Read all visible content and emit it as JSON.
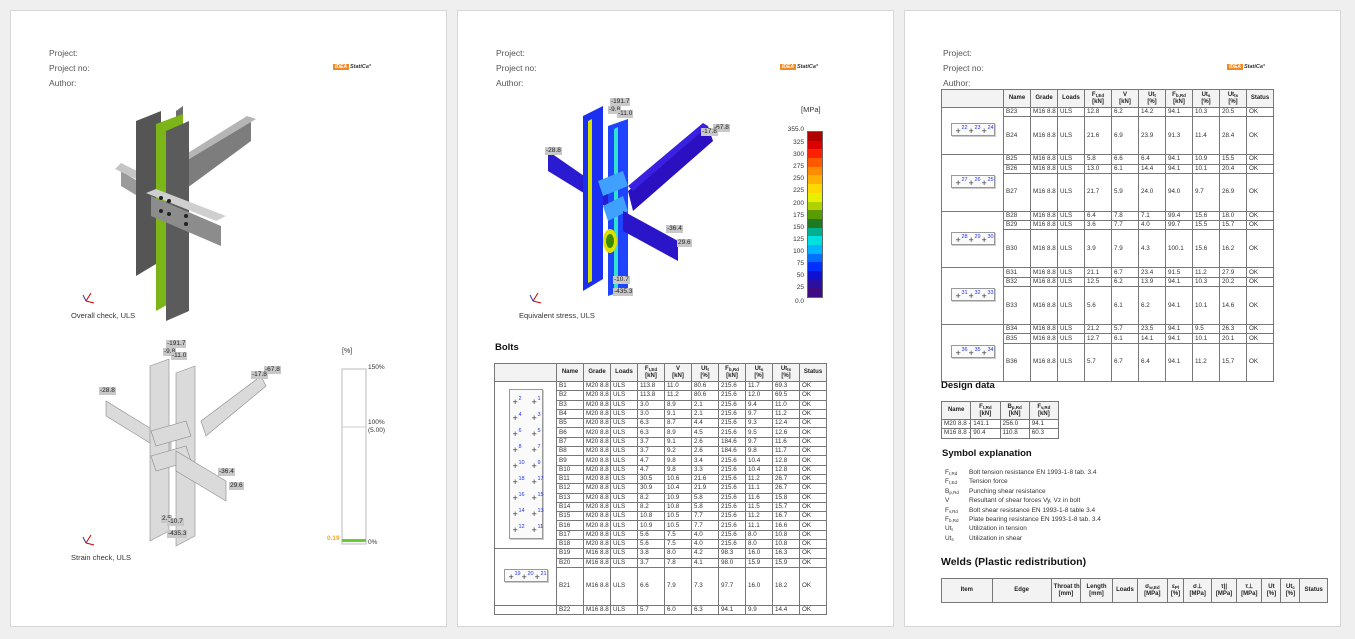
{
  "header": {
    "project": "Project:",
    "project_no": "Project no:",
    "author": "Author:",
    "logo": "IDEA StatiCa"
  },
  "page1": {
    "overall_caption": "Overall check, ULS",
    "strain_caption": "Strain check, ULS",
    "strain_labels": [
      "-191.7",
      "-9.8",
      "-11.0",
      "-67.8",
      "-17.8",
      "-28.8",
      "-36.4",
      "29.6",
      "2.5",
      "-10.7",
      "-435.3"
    ],
    "strain_legend": {
      "unit": "[%]",
      "top": "150%",
      "mid": "100%",
      "mid_sub": "(5.00)",
      "bottom": "0%",
      "value": "0.19",
      "value_color": "#f5a623",
      "fill_color": "#66cc33"
    }
  },
  "page2": {
    "stress_caption": "Equivalent stress, ULS",
    "stress_labels": [
      "-191.7",
      "-9.8",
      "-11.0",
      "-67.8",
      "-17.8",
      "-28.8",
      "-36.4",
      "29.6",
      "-10.7",
      "-435.3"
    ],
    "stress_legend": {
      "unit": "[MPa]",
      "ticks": [
        "355.0",
        "325",
        "300",
        "275",
        "250",
        "225",
        "200",
        "175",
        "150",
        "125",
        "100",
        "75",
        "50",
        "25",
        "0.0"
      ],
      "colors": [
        "#b00000",
        "#dd0000",
        "#ff2000",
        "#ff5a00",
        "#ff8c00",
        "#ffb000",
        "#ffd800",
        "#e8f000",
        "#b0d000",
        "#5a9c00",
        "#1f7a1f",
        "#00b090",
        "#00e0e0",
        "#00b4ff",
        "#0070ff",
        "#0030ff",
        "#1010d0",
        "#2a10a0",
        "#400a80"
      ]
    },
    "bolts_title": "Bolts"
  },
  "bolt_headers": [
    {
      "m": "Name"
    },
    {
      "m": "Grade"
    },
    {
      "m": "Loads"
    },
    {
      "m": "F",
      "s": "t,Ed",
      "u": "[kN]"
    },
    {
      "m": "V",
      "u": "[kN]"
    },
    {
      "m": "Ut",
      "s": "t",
      "u": "[%]"
    },
    {
      "m": "F",
      "s": "b,Rd",
      "u": "[kN]"
    },
    {
      "m": "Ut",
      "s": "s",
      "u": "[%]"
    },
    {
      "m": "Ut",
      "s": "ts",
      "u": "[%]"
    },
    {
      "m": "Status"
    }
  ],
  "bolt_groups_p2": [
    {
      "pic": "column",
      "left": [
        "2",
        "4",
        "6",
        "8",
        "10",
        "18",
        "16",
        "14",
        "12"
      ],
      "right": [
        "1",
        "3",
        "5",
        "7",
        "9",
        "17",
        "15",
        "13",
        "11"
      ],
      "rows": [
        [
          "B1",
          "M20 8.8 - 1",
          "ULS",
          "113.8",
          "11.0",
          "80.6",
          "215.6",
          "11.7",
          "69.3",
          "OK"
        ],
        [
          "B2",
          "M20 8.8 - 1",
          "ULS",
          "113.8",
          "11.2",
          "80.6",
          "215.6",
          "12.0",
          "69.5",
          "OK"
        ],
        [
          "B3",
          "M20 8.8 - 1",
          "ULS",
          "3.0",
          "8.9",
          "2.1",
          "215.6",
          "9.4",
          "11.0",
          "OK"
        ],
        [
          "B4",
          "M20 8.8 - 1",
          "ULS",
          "3.0",
          "9.1",
          "2.1",
          "215.6",
          "9.7",
          "11.2",
          "OK"
        ],
        [
          "B5",
          "M20 8.8 - 1",
          "ULS",
          "6.3",
          "8.7",
          "4.4",
          "215.6",
          "9.3",
          "12.4",
          "OK"
        ],
        [
          "B6",
          "M20 8.8 - 1",
          "ULS",
          "6.3",
          "8.9",
          "4.5",
          "215.6",
          "9.5",
          "12.6",
          "OK"
        ],
        [
          "B7",
          "M20 8.8 - 1",
          "ULS",
          "3.7",
          "9.1",
          "2.6",
          "184.6",
          "9.7",
          "11.6",
          "OK"
        ],
        [
          "B8",
          "M20 8.8 - 1",
          "ULS",
          "3.7",
          "9.2",
          "2.6",
          "184.6",
          "9.8",
          "11.7",
          "OK"
        ],
        [
          "B9",
          "M20 8.8 - 1",
          "ULS",
          "4.7",
          "9.8",
          "3.4",
          "215.6",
          "10.4",
          "12.8",
          "OK"
        ],
        [
          "B10",
          "M20 8.8 - 1",
          "ULS",
          "4.7",
          "9.8",
          "3.3",
          "215.6",
          "10.4",
          "12.8",
          "OK"
        ],
        [
          "B11",
          "M20 8.8 - 1",
          "ULS",
          "30.5",
          "10.6",
          "21.6",
          "215.6",
          "11.2",
          "26.7",
          "OK"
        ],
        [
          "B12",
          "M20 8.8 - 1",
          "ULS",
          "30.9",
          "10.4",
          "21.9",
          "215.6",
          "11.1",
          "26.7",
          "OK"
        ],
        [
          "B13",
          "M20 8.8 - 1",
          "ULS",
          "8.2",
          "10.9",
          "5.8",
          "215.6",
          "11.6",
          "15.8",
          "OK"
        ],
        [
          "B14",
          "M20 8.8 - 1",
          "ULS",
          "8.2",
          "10.8",
          "5.8",
          "215.6",
          "11.5",
          "15.7",
          "OK"
        ],
        [
          "B15",
          "M20 8.8 - 1",
          "ULS",
          "10.8",
          "10.5",
          "7.7",
          "215.6",
          "11.2",
          "16.7",
          "OK"
        ],
        [
          "B16",
          "M20 8.8 - 1",
          "ULS",
          "10.9",
          "10.5",
          "7.7",
          "215.6",
          "11.1",
          "16.6",
          "OK"
        ],
        [
          "B17",
          "M20 8.8 - 1",
          "ULS",
          "5.6",
          "7.5",
          "4.0",
          "215.6",
          "8.0",
          "10.8",
          "OK"
        ],
        [
          "B18",
          "M20 8.8 - 1",
          "ULS",
          "5.6",
          "7.5",
          "4.0",
          "215.6",
          "8.0",
          "10.8",
          "OK"
        ]
      ]
    },
    {
      "pic": "row",
      "bolts": [
        "19",
        "20",
        "21"
      ],
      "rows": [
        [
          "B19",
          "M16 8.8 - 2",
          "ULS",
          "3.8",
          "8.0",
          "4.2",
          "98.3",
          "16.0",
          "16.3",
          "OK"
        ],
        [
          "B20",
          "M16 8.8 - 2",
          "ULS",
          "3.7",
          "7.8",
          "4.1",
          "98.0",
          "15.9",
          "15.9",
          "OK"
        ],
        [
          "B21",
          "M16 8.8 - 2",
          "ULS",
          "6.6",
          "7.9",
          "7.3",
          "97.7",
          "16.0",
          "18.2",
          "OK"
        ]
      ]
    },
    {
      "pic": "none",
      "rows": [
        [
          "B22",
          "M16 8.8 - 2",
          "ULS",
          "5.7",
          "6.0",
          "6.3",
          "94.1",
          "9.9",
          "14.4",
          "OK"
        ]
      ]
    }
  ],
  "bolt_groups_p3": [
    {
      "pic": "row",
      "bolts": [
        "22",
        "23",
        "24"
      ],
      "rows": [
        [
          "B23",
          "M16 8.8 - 2",
          "ULS",
          "12.8",
          "6.2",
          "14.2",
          "94.1",
          "10.3",
          "20.5",
          "OK"
        ],
        [
          "B24",
          "M16 8.8 - 2",
          "ULS",
          "21.6",
          "6.9",
          "23.9",
          "91.3",
          "11.4",
          "28.4",
          "OK"
        ]
      ]
    },
    {
      "pic": "row",
      "bolts": [
        "27",
        "26",
        "25"
      ],
      "rows": [
        [
          "B25",
          "M16 8.8 - 2",
          "ULS",
          "5.8",
          "6.6",
          "6.4",
          "94.1",
          "10.9",
          "15.5",
          "OK"
        ],
        [
          "B26",
          "M16 8.8 - 2",
          "ULS",
          "13.0",
          "6.1",
          "14.4",
          "94.1",
          "10.1",
          "20.4",
          "OK"
        ],
        [
          "B27",
          "M16 8.8 - 2",
          "ULS",
          "21.7",
          "5.9",
          "24.0",
          "94.0",
          "9.7",
          "26.9",
          "OK"
        ]
      ]
    },
    {
      "pic": "row",
      "bolts": [
        "28",
        "29",
        "30"
      ],
      "rows": [
        [
          "B28",
          "M16 8.8 - 2",
          "ULS",
          "6.4",
          "7.8",
          "7.1",
          "99.4",
          "15.6",
          "18.0",
          "OK"
        ],
        [
          "B29",
          "M16 8.8 - 2",
          "ULS",
          "3.6",
          "7.7",
          "4.0",
          "99.7",
          "15.5",
          "15.7",
          "OK"
        ],
        [
          "B30",
          "M16 8.8 - 2",
          "ULS",
          "3.9",
          "7.9",
          "4.3",
          "100.1",
          "15.6",
          "16.2",
          "OK"
        ]
      ]
    },
    {
      "pic": "row",
      "bolts": [
        "31",
        "32",
        "33"
      ],
      "rows": [
        [
          "B31",
          "M16 8.8 - 2",
          "ULS",
          "21.1",
          "6.7",
          "23.4",
          "91.5",
          "11.2",
          "27.9",
          "OK"
        ],
        [
          "B32",
          "M16 8.8 - 2",
          "ULS",
          "12.5",
          "6.2",
          "13.9",
          "94.1",
          "10.3",
          "20.2",
          "OK"
        ],
        [
          "B33",
          "M16 8.8 - 2",
          "ULS",
          "5.6",
          "6.1",
          "6.2",
          "94.1",
          "10.1",
          "14.6",
          "OK"
        ]
      ]
    },
    {
      "pic": "row",
      "bolts": [
        "36",
        "35",
        "34"
      ],
      "rows": [
        [
          "B34",
          "M16 8.8 - 2",
          "ULS",
          "21.2",
          "5.7",
          "23.5",
          "94.1",
          "9.5",
          "26.3",
          "OK"
        ],
        [
          "B35",
          "M16 8.8 - 2",
          "ULS",
          "12.7",
          "6.1",
          "14.1",
          "94.1",
          "10.1",
          "20.1",
          "OK"
        ],
        [
          "B36",
          "M16 8.8 - 2",
          "ULS",
          "5.7",
          "6.7",
          "6.4",
          "94.1",
          "11.2",
          "15.7",
          "OK"
        ]
      ]
    }
  ],
  "design_data": {
    "title": "Design data",
    "headers": [
      {
        "m": "Name"
      },
      {
        "m": "F",
        "s": "t,Rd",
        "u": "[kN]"
      },
      {
        "m": "B",
        "s": "p,Rd",
        "u": "[kN]"
      },
      {
        "m": "F",
        "s": "v,Rd",
        "u": "[kN]"
      }
    ],
    "rows": [
      [
        "M20 8.8 - 1",
        "141.1",
        "256.0",
        "94.1"
      ],
      [
        "M16 8.8 - 2",
        "90.4",
        "110.8",
        "60.3"
      ]
    ]
  },
  "symbols": {
    "title": "Symbol explanation",
    "items": [
      {
        "m": "F",
        "s": "t,Rd",
        "d": "Bolt tension resistance EN 1993-1-8 tab. 3.4"
      },
      {
        "m": "F",
        "s": "t,Ed",
        "d": "Tension force"
      },
      {
        "m": "B",
        "s": "p,Rd",
        "d": "Punching shear resistance"
      },
      {
        "m": "V",
        "s": "",
        "d": "Resultant of shear forces Vy, Vz in bolt"
      },
      {
        "m": "F",
        "s": "v,Rd",
        "d": "Bolt shear resistance EN  1993-1-8 table 3.4"
      },
      {
        "m": "F",
        "s": "b,Rd",
        "d": "Plate bearing resistance EN 1993-1-8 tab. 3.4"
      },
      {
        "m": "Ut",
        "s": "t",
        "d": "Utilization in tension"
      },
      {
        "m": "Ut",
        "s": "s",
        "d": "Utilization in shear"
      }
    ]
  },
  "welds": {
    "title": "Welds (Plastic redistribution)",
    "headers": [
      {
        "m": "Item"
      },
      {
        "m": "Edge"
      },
      {
        "m": "Throat th.",
        "u": "[mm]"
      },
      {
        "m": "Length",
        "u": "[mm]"
      },
      {
        "m": "Loads"
      },
      {
        "m": "σ",
        "s": "w,Ed",
        "u": "[MPa]"
      },
      {
        "m": "ε",
        "s": "Pl",
        "u": "[%]"
      },
      {
        "m": "σ⊥",
        "u": "[MPa]"
      },
      {
        "m": "τ||",
        "u": "[MPa]"
      },
      {
        "m": "τ⊥",
        "u": "[MPa]"
      },
      {
        "m": "Ut",
        "u": "[%]"
      },
      {
        "m": "Ut",
        "s": "c",
        "u": "[%]"
      },
      {
        "m": "Status"
      }
    ]
  }
}
